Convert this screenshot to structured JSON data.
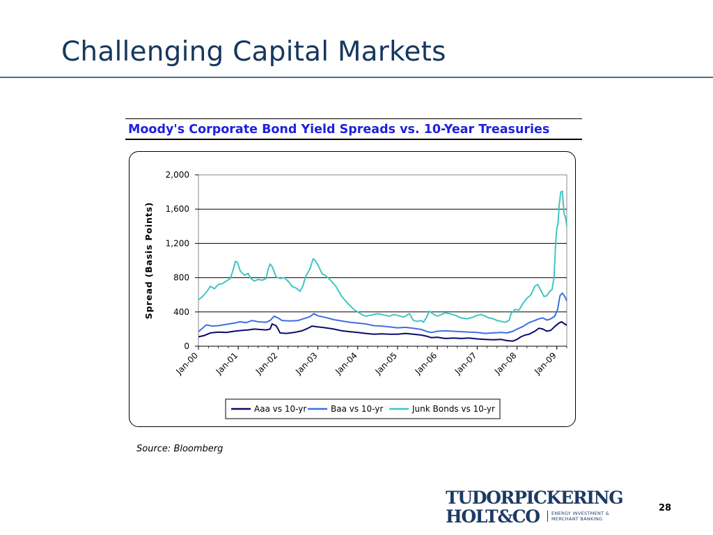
{
  "slide": {
    "title": "Challenging Capital Markets",
    "source": "Source: Bloomberg",
    "page_number": "28",
    "logo": {
      "line1": "TUDORPICKERING",
      "line2": "HOLT&CO",
      "tag_line1": "ENERGY INVESTMENT &",
      "tag_line2": "MERCHANT BANKING"
    }
  },
  "chart_data": {
    "type": "line",
    "title": "Moody's Corporate Bond Yield Spreads vs. 10-Year Treasuries",
    "xlabel": "",
    "ylabel": "Spread (Basis Points)",
    "ylim": [
      0,
      2000
    ],
    "yticks": [
      0,
      400,
      800,
      1200,
      1600,
      2000
    ],
    "ytick_labels": [
      "0",
      "400",
      "800",
      "1,200",
      "1,600",
      "2,000"
    ],
    "xlim": [
      2000.0,
      2009.25
    ],
    "xticks": [
      2000,
      2001,
      2002,
      2003,
      2004,
      2005,
      2006,
      2007,
      2008,
      2009
    ],
    "xtick_labels": [
      "Jan-00",
      "Jan-01",
      "Jan-02",
      "Jan-03",
      "Jan-04",
      "Jan-05",
      "Jan-06",
      "Jan-07",
      "Jan-08",
      "Jan-09"
    ],
    "grid": "horizontal",
    "legend": "bottom",
    "series": [
      {
        "name": "Aaa vs 10-yr",
        "color": "#0a0a6e",
        "points": [
          [
            2000.0,
            110
          ],
          [
            2000.15,
            125
          ],
          [
            2000.3,
            155
          ],
          [
            2000.5,
            165
          ],
          [
            2000.7,
            160
          ],
          [
            2000.9,
            175
          ],
          [
            2001.1,
            185
          ],
          [
            2001.25,
            190
          ],
          [
            2001.4,
            200
          ],
          [
            2001.55,
            195
          ],
          [
            2001.7,
            190
          ],
          [
            2001.8,
            200
          ],
          [
            2001.85,
            260
          ],
          [
            2001.95,
            240
          ],
          [
            2002.0,
            200
          ],
          [
            2002.05,
            155
          ],
          [
            2002.2,
            150
          ],
          [
            2002.4,
            160
          ],
          [
            2002.6,
            180
          ],
          [
            2002.75,
            210
          ],
          [
            2002.85,
            235
          ],
          [
            2003.0,
            225
          ],
          [
            2003.2,
            215
          ],
          [
            2003.4,
            200
          ],
          [
            2003.6,
            180
          ],
          [
            2003.8,
            170
          ],
          [
            2004.0,
            160
          ],
          [
            2004.2,
            150
          ],
          [
            2004.4,
            140
          ],
          [
            2004.6,
            145
          ],
          [
            2004.8,
            140
          ],
          [
            2005.0,
            140
          ],
          [
            2005.2,
            150
          ],
          [
            2005.4,
            140
          ],
          [
            2005.6,
            130
          ],
          [
            2005.75,
            115
          ],
          [
            2005.85,
            100
          ],
          [
            2006.0,
            105
          ],
          [
            2006.2,
            90
          ],
          [
            2006.4,
            95
          ],
          [
            2006.6,
            90
          ],
          [
            2006.8,
            95
          ],
          [
            2007.0,
            85
          ],
          [
            2007.2,
            80
          ],
          [
            2007.4,
            75
          ],
          [
            2007.6,
            80
          ],
          [
            2007.75,
            65
          ],
          [
            2007.9,
            60
          ],
          [
            2008.0,
            80
          ],
          [
            2008.1,
            110
          ],
          [
            2008.2,
            130
          ],
          [
            2008.3,
            140
          ],
          [
            2008.45,
            175
          ],
          [
            2008.55,
            210
          ],
          [
            2008.65,
            200
          ],
          [
            2008.75,
            175
          ],
          [
            2008.85,
            185
          ],
          [
            2008.95,
            230
          ],
          [
            2009.05,
            270
          ],
          [
            2009.12,
            285
          ],
          [
            2009.18,
            265
          ],
          [
            2009.25,
            245
          ]
        ]
      },
      {
        "name": "Baa vs 10-yr",
        "color": "#3d6fe0",
        "points": [
          [
            2000.0,
            170
          ],
          [
            2000.1,
            210
          ],
          [
            2000.2,
            250
          ],
          [
            2000.35,
            235
          ],
          [
            2000.5,
            240
          ],
          [
            2000.7,
            255
          ],
          [
            2000.9,
            270
          ],
          [
            2001.05,
            285
          ],
          [
            2001.2,
            275
          ],
          [
            2001.35,
            300
          ],
          [
            2001.5,
            285
          ],
          [
            2001.7,
            280
          ],
          [
            2001.8,
            300
          ],
          [
            2001.9,
            350
          ],
          [
            2002.0,
            330
          ],
          [
            2002.1,
            300
          ],
          [
            2002.3,
            295
          ],
          [
            2002.5,
            300
          ],
          [
            2002.7,
            330
          ],
          [
            2002.8,
            345
          ],
          [
            2002.9,
            380
          ],
          [
            2003.0,
            355
          ],
          [
            2003.2,
            335
          ],
          [
            2003.4,
            310
          ],
          [
            2003.6,
            295
          ],
          [
            2003.8,
            280
          ],
          [
            2004.0,
            270
          ],
          [
            2004.2,
            260
          ],
          [
            2004.4,
            240
          ],
          [
            2004.6,
            235
          ],
          [
            2004.8,
            225
          ],
          [
            2005.0,
            215
          ],
          [
            2005.2,
            220
          ],
          [
            2005.4,
            210
          ],
          [
            2005.6,
            195
          ],
          [
            2005.75,
            170
          ],
          [
            2005.85,
            160
          ],
          [
            2006.0,
            175
          ],
          [
            2006.2,
            180
          ],
          [
            2006.4,
            175
          ],
          [
            2006.6,
            170
          ],
          [
            2006.8,
            165
          ],
          [
            2007.0,
            160
          ],
          [
            2007.2,
            150
          ],
          [
            2007.4,
            155
          ],
          [
            2007.6,
            160
          ],
          [
            2007.75,
            155
          ],
          [
            2007.9,
            175
          ],
          [
            2008.0,
            200
          ],
          [
            2008.15,
            230
          ],
          [
            2008.3,
            275
          ],
          [
            2008.45,
            300
          ],
          [
            2008.55,
            320
          ],
          [
            2008.65,
            330
          ],
          [
            2008.75,
            305
          ],
          [
            2008.85,
            320
          ],
          [
            2008.95,
            350
          ],
          [
            2009.02,
            430
          ],
          [
            2009.08,
            590
          ],
          [
            2009.14,
            620
          ],
          [
            2009.2,
            580
          ],
          [
            2009.25,
            530
          ]
        ]
      },
      {
        "name": "Junk Bonds vs 10-yr",
        "color": "#3fc6c2",
        "points": [
          [
            2000.0,
            540
          ],
          [
            2000.1,
            580
          ],
          [
            2000.2,
            630
          ],
          [
            2000.3,
            700
          ],
          [
            2000.4,
            670
          ],
          [
            2000.5,
            720
          ],
          [
            2000.6,
            730
          ],
          [
            2000.7,
            760
          ],
          [
            2000.8,
            790
          ],
          [
            2000.87,
            890
          ],
          [
            2000.93,
            990
          ],
          [
            2000.98,
            980
          ],
          [
            2001.05,
            880
          ],
          [
            2001.15,
            830
          ],
          [
            2001.25,
            850
          ],
          [
            2001.3,
            800
          ],
          [
            2001.4,
            760
          ],
          [
            2001.5,
            780
          ],
          [
            2001.6,
            770
          ],
          [
            2001.7,
            790
          ],
          [
            2001.75,
            900
          ],
          [
            2001.8,
            960
          ],
          [
            2001.85,
            930
          ],
          [
            2001.95,
            810
          ],
          [
            2002.05,
            790
          ],
          [
            2002.15,
            800
          ],
          [
            2002.25,
            760
          ],
          [
            2002.35,
            700
          ],
          [
            2002.45,
            680
          ],
          [
            2002.55,
            640
          ],
          [
            2002.62,
            700
          ],
          [
            2002.7,
            820
          ],
          [
            2002.8,
            900
          ],
          [
            2002.88,
            1020
          ],
          [
            2002.93,
            1000
          ],
          [
            2003.0,
            950
          ],
          [
            2003.1,
            850
          ],
          [
            2003.2,
            820
          ],
          [
            2003.3,
            780
          ],
          [
            2003.45,
            700
          ],
          [
            2003.6,
            580
          ],
          [
            2003.75,
            500
          ],
          [
            2003.9,
            430
          ],
          [
            2004.0,
            400
          ],
          [
            2004.1,
            370
          ],
          [
            2004.2,
            350
          ],
          [
            2004.3,
            360
          ],
          [
            2004.4,
            370
          ],
          [
            2004.5,
            380
          ],
          [
            2004.6,
            370
          ],
          [
            2004.7,
            360
          ],
          [
            2004.8,
            350
          ],
          [
            2004.9,
            370
          ],
          [
            2005.0,
            360
          ],
          [
            2005.15,
            340
          ],
          [
            2005.3,
            380
          ],
          [
            2005.4,
            300
          ],
          [
            2005.5,
            290
          ],
          [
            2005.6,
            300
          ],
          [
            2005.65,
            280
          ],
          [
            2005.72,
            330
          ],
          [
            2005.8,
            410
          ],
          [
            2005.88,
            380
          ],
          [
            2006.0,
            350
          ],
          [
            2006.1,
            370
          ],
          [
            2006.2,
            390
          ],
          [
            2006.3,
            380
          ],
          [
            2006.45,
            360
          ],
          [
            2006.6,
            330
          ],
          [
            2006.75,
            320
          ],
          [
            2006.9,
            340
          ],
          [
            2007.0,
            360
          ],
          [
            2007.1,
            370
          ],
          [
            2007.2,
            350
          ],
          [
            2007.3,
            330
          ],
          [
            2007.4,
            320
          ],
          [
            2007.5,
            300
          ],
          [
            2007.6,
            290
          ],
          [
            2007.7,
            280
          ],
          [
            2007.8,
            300
          ],
          [
            2007.85,
            380
          ],
          [
            2007.95,
            430
          ],
          [
            2008.05,
            420
          ],
          [
            2008.15,
            500
          ],
          [
            2008.25,
            560
          ],
          [
            2008.35,
            600
          ],
          [
            2008.45,
            700
          ],
          [
            2008.52,
            720
          ],
          [
            2008.6,
            650
          ],
          [
            2008.68,
            580
          ],
          [
            2008.75,
            590
          ],
          [
            2008.82,
            640
          ],
          [
            2008.88,
            660
          ],
          [
            2008.93,
            800
          ],
          [
            2008.97,
            1200
          ],
          [
            2009.0,
            1380
          ],
          [
            2009.03,
            1420
          ],
          [
            2009.06,
            1650
          ],
          [
            2009.1,
            1800
          ],
          [
            2009.14,
            1810
          ],
          [
            2009.18,
            1550
          ],
          [
            2009.22,
            1500
          ],
          [
            2009.25,
            1400
          ]
        ]
      }
    ]
  }
}
